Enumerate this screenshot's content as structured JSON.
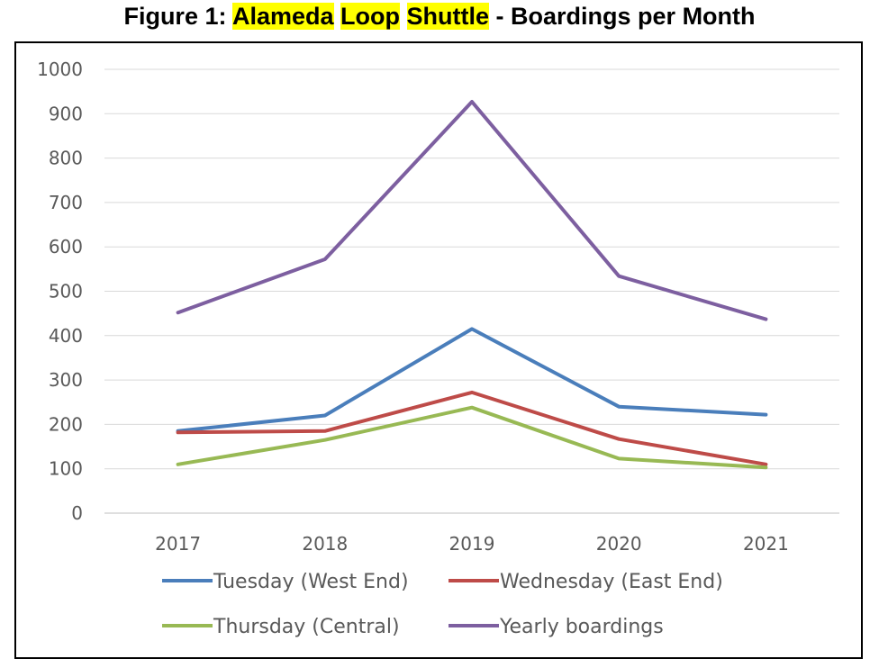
{
  "title": {
    "prefix": "Figure 1: ",
    "highlighted": [
      "Alameda",
      "Loop",
      "Shuttle"
    ],
    "suffix": " - Boardings per Month"
  },
  "chart_data": {
    "type": "line",
    "title": "Figure 1: Alameda Loop Shuttle - Boardings per Month",
    "categories": [
      "2017",
      "2018",
      "2019",
      "2020",
      "2021"
    ],
    "ylim": [
      0,
      1000
    ],
    "yticks": [
      0,
      100,
      200,
      300,
      400,
      500,
      600,
      700,
      800,
      900,
      1000
    ],
    "grid": true,
    "legend_position": "bottom",
    "series": [
      {
        "name": "Tuesday (West End)",
        "color": "#4a7ebb",
        "values": [
          185,
          220,
          415,
          240,
          222
        ]
      },
      {
        "name": "Wednesday (East End)",
        "color": "#be4b48",
        "values": [
          182,
          185,
          272,
          167,
          110
        ]
      },
      {
        "name": "Thursday (Central)",
        "color": "#98b954",
        "values": [
          110,
          165,
          238,
          123,
          103
        ]
      },
      {
        "name": "Yearly boardings",
        "color": "#7d5fa0",
        "values": [
          452,
          572,
          927,
          534,
          437
        ]
      }
    ]
  }
}
